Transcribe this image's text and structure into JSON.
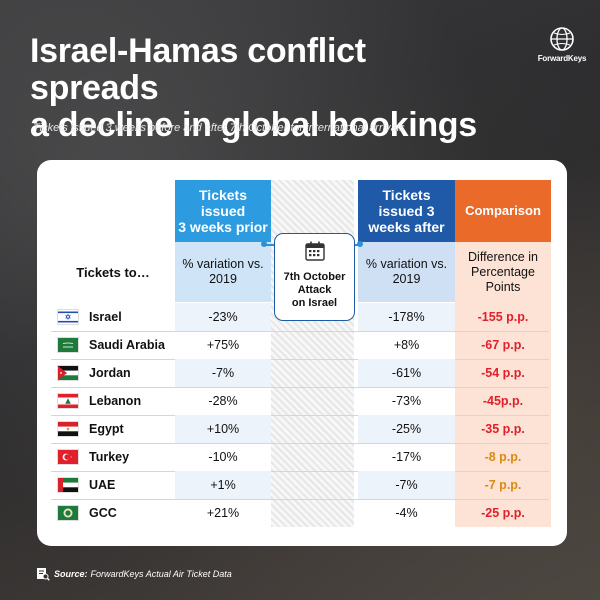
{
  "title_line1": "Israel-Hamas conflict spreads",
  "title_line2": "a decline in global bookings",
  "subtitle": "Tickets issued 3 weeks before and after 7th October for international arrivals",
  "logo_text": "ForwardKeys",
  "headers": {
    "tickets_to": "Tickets to…",
    "prior_l1": "Tickets",
    "prior_l2": "issued",
    "prior_l3": "3 weeks prior",
    "after_l1": "Tickets",
    "after_l2": "issued 3",
    "after_l3": "weeks after",
    "comparison": "Comparison",
    "prior_sub_l1": "% variation vs.",
    "prior_sub_l2": "2019",
    "after_sub_l1": "% variation vs.",
    "after_sub_l2": "2019",
    "comp_sub_l1": "Difference in",
    "comp_sub_l2": "Percentage",
    "comp_sub_l3": "Points"
  },
  "attack_l1": "7th October",
  "attack_l2": "Attack",
  "attack_l3": "on Israel",
  "rows": [
    {
      "country": "Israel",
      "prior": "-23%",
      "after": "-178%",
      "comparison": "-155 p.p."
    },
    {
      "country": "Saudi Arabia",
      "prior": "+75%",
      "after": "+8%",
      "comparison": "-67 p.p."
    },
    {
      "country": "Jordan",
      "prior": "-7%",
      "after": "-61%",
      "comparison": "-54 p.p."
    },
    {
      "country": "Lebanon",
      "prior": "-28%",
      "after": "-73%",
      "comparison": "-45p.p."
    },
    {
      "country": "Egypt",
      "prior": "+10%",
      "after": "-25%",
      "comparison": "-35 p.p."
    },
    {
      "country": "Turkey",
      "prior": "-10%",
      "after": "-17%",
      "comparison": "-8 p.p."
    },
    {
      "country": "UAE",
      "prior": "+1%",
      "after": "-7%",
      "comparison": "-7 p.p."
    },
    {
      "country": "GCC",
      "prior": "+21%",
      "after": "-4%",
      "comparison": "-25 p.p."
    }
  ],
  "source_label": "Source:",
  "source_text": "ForwardKeys Actual Air Ticket Data",
  "colors": {
    "prior_header": "#2d9be0",
    "prior_sub": "#cfe4f7",
    "after_header": "#1f5aa8",
    "after_sub": "#cfe0f5",
    "comp_header": "#ea6a2a",
    "comp_bg": "#fde3d6",
    "comp_red": "#e0202a",
    "comp_amber": "#d88a12",
    "row_tint": "#edf3fb"
  }
}
